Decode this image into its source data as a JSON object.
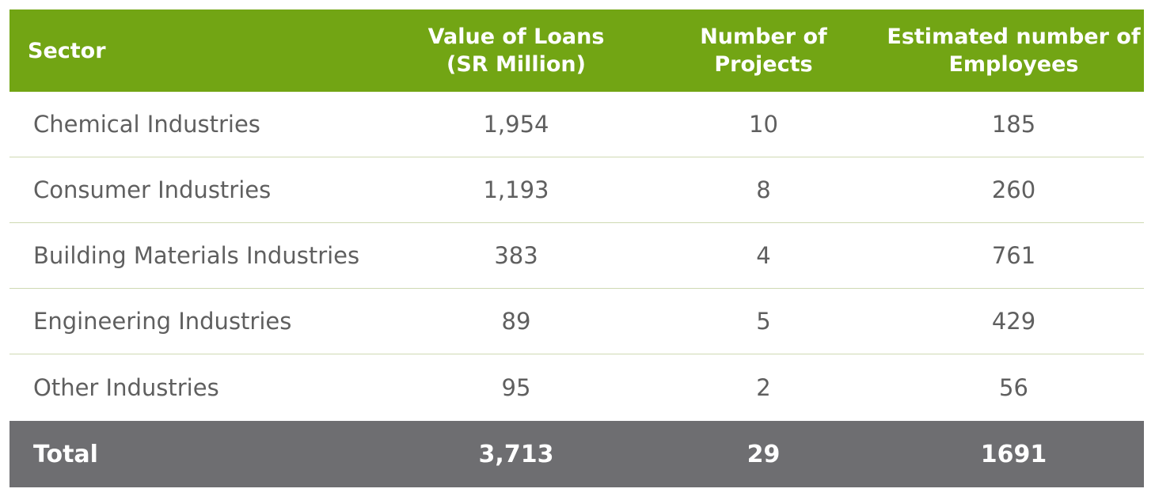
{
  "table": {
    "headers": {
      "sector": "Sector",
      "loans_line1": "Value of Loans",
      "loans_line2": "(SR Million)",
      "projects_line1": "Number of",
      "projects_line2": "Projects",
      "employees_line1": "Estimated number of",
      "employees_line2": "Employees"
    },
    "rows": [
      {
        "sector": "Chemical Industries",
        "loans": "1,954",
        "projects": "10",
        "employees": "185"
      },
      {
        "sector": "Consumer Industries",
        "loans": "1,193",
        "projects": "8",
        "employees": "260"
      },
      {
        "sector": "Building Materials Industries",
        "loans": "383",
        "projects": "4",
        "employees": "761"
      },
      {
        "sector": "Engineering Industries",
        "loans": "89",
        "projects": "5",
        "employees": "429"
      },
      {
        "sector": "Other Industries",
        "loans": "95",
        "projects": "2",
        "employees": "56"
      }
    ],
    "total": {
      "label": "Total",
      "loans": "3,713",
      "projects": "29",
      "employees": "1691"
    }
  },
  "colors": {
    "header_bg": "#72a514",
    "total_bg": "#6e6e71",
    "body_text": "#5f5f5f",
    "row_divider": "#cfd9b3"
  }
}
